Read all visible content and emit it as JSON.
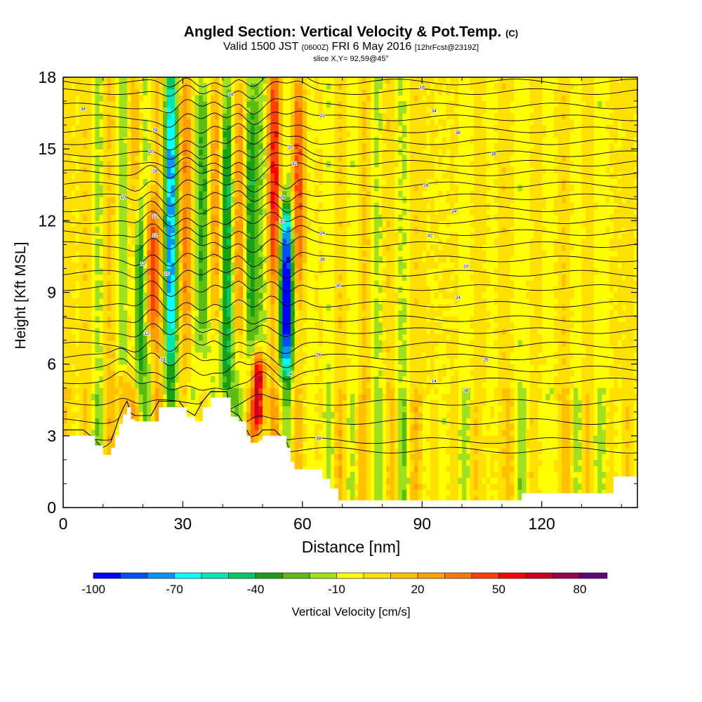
{
  "header": {
    "title": "Angled Section: Vertical Velocity & Pot.Temp.",
    "title_units": "(C)",
    "valid_prefix": "Valid 1500 JST",
    "valid_utc": "(0600Z)",
    "valid_date": "FRI 6 May 2016",
    "forecast_info": "[12hrFcst@2319Z]",
    "slice_info": "slice X,Y= 92,59@45°"
  },
  "chart_data": {
    "type": "heatmap",
    "xlabel": "Distance [nm]",
    "ylabel": "Height [Kft MSL]",
    "xlim": [
      0,
      144
    ],
    "ylim": [
      0,
      18
    ],
    "x_ticks": [
      0,
      30,
      60,
      90,
      120
    ],
    "y_ticks": [
      0,
      3,
      6,
      9,
      12,
      15,
      18
    ],
    "colorbar": {
      "label": "Vertical Velocity [cm/s]",
      "range": [
        -100,
        90
      ],
      "step": 10,
      "tick_values": [
        -100,
        -70,
        -40,
        -10,
        20,
        50,
        80
      ],
      "colors": [
        "#0000ff",
        "#0050ff",
        "#0096ff",
        "#00ffff",
        "#00e6b4",
        "#00c864",
        "#18a018",
        "#5cbc10",
        "#a0e020",
        "#ffff00",
        "#ffe000",
        "#ffc000",
        "#ffa000",
        "#ff7800",
        "#ff4000",
        "#ff0000",
        "#c80020",
        "#960050",
        "#600080"
      ]
    },
    "updrafts": [
      {
        "x": 15,
        "y_from": 3.8,
        "y_to": 5.0,
        "w": 40
      },
      {
        "x": 22,
        "y_from": 7.5,
        "y_to": 12.5,
        "w": 45
      },
      {
        "x": 31,
        "y_from": 7.0,
        "y_to": 18,
        "w": 30
      },
      {
        "x": 38,
        "y_from": 8.0,
        "y_to": 18,
        "w": 35
      },
      {
        "x": 44,
        "y_from": 7.0,
        "y_to": 18,
        "w": 45
      },
      {
        "x": 49,
        "y_from": 3.5,
        "y_to": 6.0,
        "w": 85
      },
      {
        "x": 53,
        "y_from": 10.0,
        "y_to": 18,
        "w": 40
      },
      {
        "x": 59,
        "y_from": 10.0,
        "y_to": 17.0,
        "w": 35
      }
    ],
    "downdrafts": [
      {
        "x": 19,
        "y_from": 5.0,
        "y_to": 12.0,
        "w": -40
      },
      {
        "x": 27,
        "y_from": 6.0,
        "y_to": 18,
        "w": -65
      },
      {
        "x": 35,
        "y_from": 6.5,
        "y_to": 18,
        "w": -40
      },
      {
        "x": 41,
        "y_from": 3.2,
        "y_to": 18,
        "w": -60
      },
      {
        "x": 47,
        "y_from": 6.0,
        "y_to": 18,
        "w": -50
      },
      {
        "x": 56,
        "y_from": 6.0,
        "y_to": 12.0,
        "w": -95
      }
    ],
    "terrain_top_kft": [
      [
        0,
        3.0
      ],
      [
        5,
        3.0
      ],
      [
        8,
        2.6
      ],
      [
        10,
        2.2
      ],
      [
        12,
        2.5
      ],
      [
        13,
        3.0
      ],
      [
        14,
        3.5
      ],
      [
        15,
        3.9
      ],
      [
        16,
        4.2
      ],
      [
        17,
        3.7
      ],
      [
        18,
        3.6
      ],
      [
        22,
        3.6
      ],
      [
        24,
        4.2
      ],
      [
        29,
        4.2
      ],
      [
        31,
        3.8
      ],
      [
        33,
        3.6
      ],
      [
        35,
        4.2
      ],
      [
        37,
        4.6
      ],
      [
        41,
        4.6
      ],
      [
        42,
        3.8
      ],
      [
        44,
        3.6
      ],
      [
        46,
        3.0
      ],
      [
        47,
        2.7
      ],
      [
        49,
        2.8
      ],
      [
        50,
        3.0
      ],
      [
        53,
        3.0
      ],
      [
        56,
        2.5
      ],
      [
        57,
        1.9
      ],
      [
        58,
        1.6
      ],
      [
        63,
        1.6
      ],
      [
        65,
        1.2
      ],
      [
        67,
        0.8
      ],
      [
        69,
        0.3
      ],
      [
        113,
        0.3
      ],
      [
        115,
        0.6
      ],
      [
        131,
        0.6
      ],
      [
        138,
        1.3
      ],
      [
        144,
        1.3
      ]
    ],
    "theta_contours_kft": [
      2.4,
      2.8,
      3.6,
      4.4,
      5.3,
      5.8,
      6.3,
      6.8,
      7.4,
      7.9,
      8.5,
      9.2,
      9.8,
      10.4,
      11.0,
      11.5,
      12.0,
      12.5,
      13.0,
      13.5,
      14.0,
      14.4,
      14.8,
      15.3,
      15.8,
      16.3,
      16.8,
      17.4,
      17.8
    ],
    "contour_labels": [
      {
        "text": "34",
        "x": 5,
        "kft": 16.7
      },
      {
        "text": "34",
        "x": 42,
        "kft": 17.3
      },
      {
        "text": "28",
        "x": 23,
        "kft": 15.8
      },
      {
        "text": "20",
        "x": 22,
        "kft": 14.9
      },
      {
        "text": "18",
        "x": 23,
        "kft": 14.1
      },
      {
        "text": "10",
        "x": 15,
        "kft": 13.0
      },
      {
        "text": "12",
        "x": 23,
        "kft": 12.2
      },
      {
        "text": "12",
        "x": 23,
        "kft": 11.4
      },
      {
        "text": "12",
        "x": 20,
        "kft": 10.2
      },
      {
        "text": "20",
        "x": 26,
        "kft": 9.8
      },
      {
        "text": "12",
        "x": 21,
        "kft": 7.3
      },
      {
        "text": "24",
        "x": 25,
        "kft": 6.2
      },
      {
        "text": "20",
        "x": 57,
        "kft": 15.1
      },
      {
        "text": "32",
        "x": 58,
        "kft": 14.4
      },
      {
        "text": "26",
        "x": 55,
        "kft": 13.0
      },
      {
        "text": "30",
        "x": 55,
        "kft": 12.0
      },
      {
        "text": "22",
        "x": 65,
        "kft": 16.4
      },
      {
        "text": "24",
        "x": 65,
        "kft": 11.5
      },
      {
        "text": "38",
        "x": 65,
        "kft": 10.4
      },
      {
        "text": "30",
        "x": 69,
        "kft": 9.3
      },
      {
        "text": "26",
        "x": 64,
        "kft": 6.4
      },
      {
        "text": "4",
        "x": 57,
        "kft": 5.6
      },
      {
        "text": "18",
        "x": 90,
        "kft": 17.6
      },
      {
        "text": "34",
        "x": 93,
        "kft": 16.6
      },
      {
        "text": "36",
        "x": 99,
        "kft": 15.7
      },
      {
        "text": "36",
        "x": 108,
        "kft": 14.8
      },
      {
        "text": "28",
        "x": 91,
        "kft": 13.5
      },
      {
        "text": "34",
        "x": 98,
        "kft": 12.4
      },
      {
        "text": "42",
        "x": 92,
        "kft": 11.4
      },
      {
        "text": "20",
        "x": 101,
        "kft": 10.1
      },
      {
        "text": "24",
        "x": 99,
        "kft": 8.8
      },
      {
        "text": "26",
        "x": 106,
        "kft": 6.2
      },
      {
        "text": "14",
        "x": 93,
        "kft": 5.3
      },
      {
        "text": "36",
        "x": 101,
        "kft": 4.9
      },
      {
        "text": "38",
        "x": 64,
        "kft": 2.9
      }
    ]
  }
}
